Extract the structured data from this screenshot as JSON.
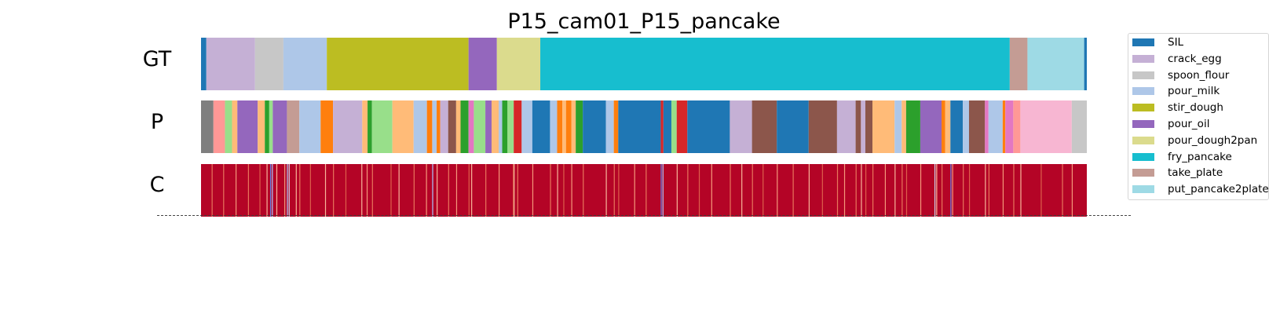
{
  "chart_data": {
    "type": "segmentation",
    "title": "P15_cam01_P15_pancake",
    "frames": 1000,
    "rows": [
      {
        "label": "GT",
        "segments": [
          {
            "start": 0,
            "end": 6,
            "color": "#1f77b4"
          },
          {
            "start": 6,
            "end": 61,
            "color": "#c5b0d5"
          },
          {
            "start": 61,
            "end": 93,
            "color": "#c7c7c7"
          },
          {
            "start": 93,
            "end": 142,
            "color": "#aec7e8"
          },
          {
            "start": 142,
            "end": 302,
            "color": "#bcbd22"
          },
          {
            "start": 302,
            "end": 334,
            "color": "#9467bd"
          },
          {
            "start": 334,
            "end": 383,
            "color": "#dbdb8d"
          },
          {
            "start": 383,
            "end": 913,
            "color": "#17becf"
          },
          {
            "start": 913,
            "end": 933,
            "color": "#c49c94"
          },
          {
            "start": 933,
            "end": 997,
            "color": "#9edae5"
          },
          {
            "start": 997,
            "end": 1000,
            "color": "#1f77b4"
          }
        ]
      },
      {
        "label": "P",
        "segments": [
          {
            "start": 0,
            "end": 14,
            "color": "#7f7f7f"
          },
          {
            "start": 14,
            "end": 27,
            "color": "#ff9896"
          },
          {
            "start": 27,
            "end": 35,
            "color": "#98df8a"
          },
          {
            "start": 35,
            "end": 41,
            "color": "#ffbb78"
          },
          {
            "start": 41,
            "end": 64,
            "color": "#9467bd"
          },
          {
            "start": 64,
            "end": 72,
            "color": "#ffbb78"
          },
          {
            "start": 72,
            "end": 77,
            "color": "#2ca02c"
          },
          {
            "start": 77,
            "end": 81,
            "color": "#98df8a"
          },
          {
            "start": 81,
            "end": 97,
            "color": "#9467bd"
          },
          {
            "start": 97,
            "end": 111,
            "color": "#c49c94"
          },
          {
            "start": 111,
            "end": 135,
            "color": "#aec7e8"
          },
          {
            "start": 135,
            "end": 149,
            "color": "#ff7f0e"
          },
          {
            "start": 149,
            "end": 182,
            "color": "#c5b0d5"
          },
          {
            "start": 182,
            "end": 188,
            "color": "#ffbb78"
          },
          {
            "start": 188,
            "end": 193,
            "color": "#2ca02c"
          },
          {
            "start": 193,
            "end": 216,
            "color": "#98df8a"
          },
          {
            "start": 216,
            "end": 240,
            "color": "#ffbb78"
          },
          {
            "start": 240,
            "end": 255,
            "color": "#aec7e8"
          },
          {
            "start": 255,
            "end": 261,
            "color": "#ff7f0e"
          },
          {
            "start": 261,
            "end": 266,
            "color": "#aec7e8"
          },
          {
            "start": 266,
            "end": 270,
            "color": "#ff7f0e"
          },
          {
            "start": 270,
            "end": 279,
            "color": "#c5b0d5"
          },
          {
            "start": 279,
            "end": 288,
            "color": "#8c564b"
          },
          {
            "start": 288,
            "end": 293,
            "color": "#ffbb78"
          },
          {
            "start": 293,
            "end": 302,
            "color": "#2ca02c"
          },
          {
            "start": 302,
            "end": 308,
            "color": "#e377c2"
          },
          {
            "start": 308,
            "end": 321,
            "color": "#98df8a"
          },
          {
            "start": 321,
            "end": 328,
            "color": "#9467bd"
          },
          {
            "start": 328,
            "end": 336,
            "color": "#ffbb78"
          },
          {
            "start": 336,
            "end": 340,
            "color": "#aec7e8"
          },
          {
            "start": 340,
            "end": 346,
            "color": "#2ca02c"
          },
          {
            "start": 346,
            "end": 353,
            "color": "#98df8a"
          },
          {
            "start": 353,
            "end": 362,
            "color": "#d62728"
          },
          {
            "start": 362,
            "end": 374,
            "color": "#aec7e8"
          },
          {
            "start": 374,
            "end": 394,
            "color": "#1f77b4"
          },
          {
            "start": 394,
            "end": 402,
            "color": "#aec7e8"
          },
          {
            "start": 402,
            "end": 408,
            "color": "#ff7f0e"
          },
          {
            "start": 408,
            "end": 412,
            "color": "#ffbb78"
          },
          {
            "start": 412,
            "end": 418,
            "color": "#ff7f0e"
          },
          {
            "start": 418,
            "end": 423,
            "color": "#ffbb78"
          },
          {
            "start": 423,
            "end": 431,
            "color": "#2ca02c"
          },
          {
            "start": 431,
            "end": 457,
            "color": "#1f77b4"
          },
          {
            "start": 457,
            "end": 466,
            "color": "#aec7e8"
          },
          {
            "start": 466,
            "end": 471,
            "color": "#ff7f0e"
          },
          {
            "start": 471,
            "end": 519,
            "color": "#1f77b4"
          },
          {
            "start": 519,
            "end": 522,
            "color": "#d62728"
          },
          {
            "start": 522,
            "end": 531,
            "color": "#1f77b4"
          },
          {
            "start": 531,
            "end": 537,
            "color": "#98df8a"
          },
          {
            "start": 537,
            "end": 549,
            "color": "#d62728"
          },
          {
            "start": 549,
            "end": 597,
            "color": "#1f77b4"
          },
          {
            "start": 597,
            "end": 622,
            "color": "#c5b0d5"
          },
          {
            "start": 622,
            "end": 650,
            "color": "#8c564b"
          },
          {
            "start": 650,
            "end": 686,
            "color": "#1f77b4"
          },
          {
            "start": 686,
            "end": 718,
            "color": "#8c564b"
          },
          {
            "start": 718,
            "end": 739,
            "color": "#c5b0d5"
          },
          {
            "start": 739,
            "end": 745,
            "color": "#8c564b"
          },
          {
            "start": 745,
            "end": 750,
            "color": "#c5b0d5"
          },
          {
            "start": 750,
            "end": 758,
            "color": "#8c564b"
          },
          {
            "start": 758,
            "end": 783,
            "color": "#ffbb78"
          },
          {
            "start": 783,
            "end": 791,
            "color": "#aec7e8"
          },
          {
            "start": 791,
            "end": 796,
            "color": "#ffbb78"
          },
          {
            "start": 796,
            "end": 812,
            "color": "#2ca02c"
          },
          {
            "start": 812,
            "end": 836,
            "color": "#9467bd"
          },
          {
            "start": 836,
            "end": 840,
            "color": "#ff7f0e"
          },
          {
            "start": 840,
            "end": 846,
            "color": "#ffbb78"
          },
          {
            "start": 846,
            "end": 860,
            "color": "#1f77b4"
          },
          {
            "start": 860,
            "end": 867,
            "color": "#aec7e8"
          },
          {
            "start": 867,
            "end": 885,
            "color": "#8c564b"
          },
          {
            "start": 885,
            "end": 889,
            "color": "#e377c2"
          },
          {
            "start": 889,
            "end": 905,
            "color": "#aec7e8"
          },
          {
            "start": 905,
            "end": 908,
            "color": "#ff7f0e"
          },
          {
            "start": 908,
            "end": 917,
            "color": "#e377c2"
          },
          {
            "start": 917,
            "end": 925,
            "color": "#ff9896"
          },
          {
            "start": 925,
            "end": 983,
            "color": "#f7b6d2"
          },
          {
            "start": 983,
            "end": 1000,
            "color": "#c7c7c7"
          }
        ]
      },
      {
        "label": "C",
        "colormap": "coolwarm",
        "base_color": "#b40426",
        "stripes": [
          {
            "start": 12,
            "end": 13,
            "color": "#e8765c"
          },
          {
            "start": 25,
            "end": 26,
            "color": "#e8765c"
          },
          {
            "start": 39,
            "end": 40,
            "color": "#f4987a"
          },
          {
            "start": 53,
            "end": 54,
            "color": "#e8765c"
          },
          {
            "start": 66,
            "end": 67,
            "color": "#dd5f4b"
          },
          {
            "start": 74,
            "end": 75,
            "color": "#f7b599"
          },
          {
            "start": 78,
            "end": 79,
            "color": "#6282ea"
          },
          {
            "start": 80,
            "end": 81,
            "color": "#aac7fd"
          },
          {
            "start": 85,
            "end": 86,
            "color": "#f7b599"
          },
          {
            "start": 94,
            "end": 95,
            "color": "#f4987a"
          },
          {
            "start": 97,
            "end": 98,
            "color": "#aac7fd"
          },
          {
            "start": 99,
            "end": 100,
            "color": "#cdd9ec"
          },
          {
            "start": 107,
            "end": 108,
            "color": "#f7b599"
          },
          {
            "start": 111,
            "end": 112,
            "color": "#e8765c"
          },
          {
            "start": 123,
            "end": 124,
            "color": "#dd5f4b"
          },
          {
            "start": 140,
            "end": 141,
            "color": "#f7b599"
          },
          {
            "start": 149,
            "end": 150,
            "color": "#e8765c"
          },
          {
            "start": 163,
            "end": 164,
            "color": "#dd5f4b"
          },
          {
            "start": 181,
            "end": 182,
            "color": "#f7b599"
          },
          {
            "start": 187,
            "end": 188,
            "color": "#f4987a"
          },
          {
            "start": 193,
            "end": 194,
            "color": "#e8765c"
          },
          {
            "start": 214,
            "end": 215,
            "color": "#dd5f4b"
          },
          {
            "start": 223,
            "end": 224,
            "color": "#f7b599"
          },
          {
            "start": 240,
            "end": 241,
            "color": "#e8765c"
          },
          {
            "start": 254,
            "end": 255,
            "color": "#f4987a"
          },
          {
            "start": 261,
            "end": 262,
            "color": "#aac7fd"
          },
          {
            "start": 266,
            "end": 267,
            "color": "#f7b599"
          },
          {
            "start": 279,
            "end": 280,
            "color": "#e8765c"
          },
          {
            "start": 288,
            "end": 289,
            "color": "#f4987a"
          },
          {
            "start": 302,
            "end": 303,
            "color": "#dd5f4b"
          },
          {
            "start": 305,
            "end": 306,
            "color": "#f7b599"
          },
          {
            "start": 321,
            "end": 322,
            "color": "#e8765c"
          },
          {
            "start": 336,
            "end": 337,
            "color": "#f4987a"
          },
          {
            "start": 352,
            "end": 353,
            "color": "#dd5f4b"
          },
          {
            "start": 353,
            "end": 354,
            "color": "#f7b599"
          },
          {
            "start": 357,
            "end": 358,
            "color": "#e8765c"
          },
          {
            "start": 374,
            "end": 375,
            "color": "#f4987a"
          },
          {
            "start": 394,
            "end": 395,
            "color": "#e8765c"
          },
          {
            "start": 402,
            "end": 403,
            "color": "#f7b599"
          },
          {
            "start": 409,
            "end": 410,
            "color": "#dd5f4b"
          },
          {
            "start": 418,
            "end": 419,
            "color": "#f4987a"
          },
          {
            "start": 431,
            "end": 432,
            "color": "#e8765c"
          },
          {
            "start": 457,
            "end": 458,
            "color": "#f7b599"
          },
          {
            "start": 466,
            "end": 467,
            "color": "#e8765c"
          },
          {
            "start": 471,
            "end": 472,
            "color": "#dd5f4b"
          },
          {
            "start": 489,
            "end": 490,
            "color": "#f4987a"
          },
          {
            "start": 502,
            "end": 503,
            "color": "#e8765c"
          },
          {
            "start": 519,
            "end": 520,
            "color": "#6282ea"
          },
          {
            "start": 521,
            "end": 522,
            "color": "#aac7fd"
          },
          {
            "start": 537,
            "end": 538,
            "color": "#f7b599"
          },
          {
            "start": 549,
            "end": 550,
            "color": "#e8765c"
          },
          {
            "start": 562,
            "end": 563,
            "color": "#dd5f4b"
          },
          {
            "start": 576,
            "end": 577,
            "color": "#f4987a"
          },
          {
            "start": 597,
            "end": 598,
            "color": "#e8765c"
          },
          {
            "start": 610,
            "end": 611,
            "color": "#f7b599"
          },
          {
            "start": 622,
            "end": 623,
            "color": "#e8765c"
          },
          {
            "start": 634,
            "end": 635,
            "color": "#dd5f4b"
          },
          {
            "start": 650,
            "end": 651,
            "color": "#f4987a"
          },
          {
            "start": 668,
            "end": 669,
            "color": "#e8765c"
          },
          {
            "start": 686,
            "end": 687,
            "color": "#f7b599"
          },
          {
            "start": 701,
            "end": 702,
            "color": "#dd5f4b"
          },
          {
            "start": 718,
            "end": 719,
            "color": "#e8765c"
          },
          {
            "start": 726,
            "end": 727,
            "color": "#f4987a"
          },
          {
            "start": 739,
            "end": 740,
            "color": "#e8765c"
          },
          {
            "start": 745,
            "end": 746,
            "color": "#f7b599"
          },
          {
            "start": 750,
            "end": 751,
            "color": "#dd5f4b"
          },
          {
            "start": 758,
            "end": 759,
            "color": "#e8765c"
          },
          {
            "start": 772,
            "end": 773,
            "color": "#f4987a"
          },
          {
            "start": 783,
            "end": 784,
            "color": "#f7b599"
          },
          {
            "start": 791,
            "end": 792,
            "color": "#e8765c"
          },
          {
            "start": 796,
            "end": 797,
            "color": "#dd5f4b"
          },
          {
            "start": 812,
            "end": 813,
            "color": "#f4987a"
          },
          {
            "start": 828,
            "end": 829,
            "color": "#cdd9ec"
          },
          {
            "start": 830,
            "end": 831,
            "color": "#f7b599"
          },
          {
            "start": 836,
            "end": 837,
            "color": "#e8765c"
          },
          {
            "start": 846,
            "end": 847,
            "color": "#6282ea"
          },
          {
            "start": 848,
            "end": 849,
            "color": "#f4987a"
          },
          {
            "start": 860,
            "end": 861,
            "color": "#e8765c"
          },
          {
            "start": 867,
            "end": 868,
            "color": "#dd5f4b"
          },
          {
            "start": 885,
            "end": 886,
            "color": "#f7b599"
          },
          {
            "start": 889,
            "end": 890,
            "color": "#e8765c"
          },
          {
            "start": 905,
            "end": 906,
            "color": "#f4987a"
          },
          {
            "start": 917,
            "end": 918,
            "color": "#e8765c"
          },
          {
            "start": 925,
            "end": 926,
            "color": "#f7b599"
          },
          {
            "start": 948,
            "end": 949,
            "color": "#dd5f4b"
          },
          {
            "start": 972,
            "end": 973,
            "color": "#e8765c"
          },
          {
            "start": 983,
            "end": 984,
            "color": "#f4987a"
          }
        ]
      }
    ],
    "legend": {
      "placement": "right",
      "entries": [
        {
          "name": "SIL",
          "color": "#1f77b4"
        },
        {
          "name": "crack_egg",
          "color": "#c5b0d5"
        },
        {
          "name": "spoon_flour",
          "color": "#c7c7c7"
        },
        {
          "name": "pour_milk",
          "color": "#aec7e8"
        },
        {
          "name": "stir_dough",
          "color": "#bcbd22"
        },
        {
          "name": "pour_oil",
          "color": "#9467bd"
        },
        {
          "name": "pour_dough2pan",
          "color": "#dbdb8d"
        },
        {
          "name": "fry_pancake",
          "color": "#17becf"
        },
        {
          "name": "take_plate",
          "color": "#c49c94"
        },
        {
          "name": "put_pancake2plate",
          "color": "#9edae5"
        }
      ]
    }
  }
}
